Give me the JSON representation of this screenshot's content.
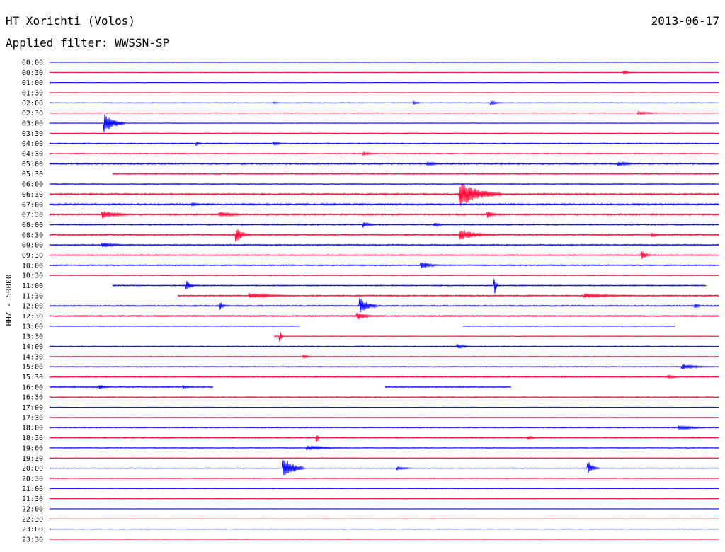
{
  "header": {
    "station": "HT Xorichti (Volos)",
    "date": "2013-06-17",
    "filter_text": "Applied filter: WWSSN-SP"
  },
  "chart_data": {
    "type": "line",
    "title": "HT Xorichti (Volos)",
    "ylabel": "HHZ - 50000",
    "colors": [
      "#0000ff",
      "#ff0033"
    ],
    "row_labels": [
      "00:00",
      "00:30",
      "01:00",
      "01:30",
      "02:00",
      "02:30",
      "03:00",
      "03:30",
      "04:00",
      "04:30",
      "05:00",
      "05:30",
      "06:00",
      "06:30",
      "07:00",
      "07:30",
      "08:00",
      "08:30",
      "09:00",
      "09:30",
      "10:00",
      "10:30",
      "11:00",
      "11:30",
      "12:00",
      "12:30",
      "13:00",
      "13:30",
      "14:00",
      "14:30",
      "15:00",
      "15:30",
      "16:00",
      "16:30",
      "17:00",
      "17:30",
      "18:00",
      "18:30",
      "19:00",
      "19:30",
      "20:00",
      "20:30",
      "21:00",
      "21:30",
      "22:00",
      "22:30",
      "23:00",
      "23:30"
    ],
    "noise_level": [
      0.2,
      0.3,
      0.2,
      0.3,
      0.4,
      0.4,
      0.3,
      0.4,
      0.6,
      0.6,
      0.8,
      0.6,
      0.5,
      0.9,
      0.9,
      0.9,
      0.7,
      0.8,
      0.7,
      0.6,
      0.7,
      0.5,
      0.6,
      0.7,
      0.7,
      0.8,
      0.4,
      0.3,
      0.5,
      0.4,
      0.5,
      0.6,
      0.6,
      0.5,
      0.3,
      0.3,
      0.5,
      0.6,
      0.4,
      0.4,
      0.4,
      0.4,
      0.3,
      0.3,
      0.2,
      0.2,
      0.3,
      0.3
    ],
    "events": [
      {
        "row": 1,
        "x": 0.858,
        "amp": 2.5,
        "len": 0.02
      },
      {
        "row": 4,
        "x": 0.66,
        "amp": 3,
        "len": 0.02
      },
      {
        "row": 4,
        "x": 0.545,
        "amp": 2,
        "len": 0.015
      },
      {
        "row": 4,
        "x": 0.335,
        "amp": 1.5,
        "len": 0.015
      },
      {
        "row": 5,
        "x": 0.88,
        "amp": 2,
        "len": 0.06
      },
      {
        "row": 6,
        "x": 0.083,
        "amp": 14,
        "len": 0.03
      },
      {
        "row": 8,
        "x": 0.335,
        "amp": 3,
        "len": 0.02
      },
      {
        "row": 8,
        "x": 0.22,
        "amp": 2.5,
        "len": 0.015
      },
      {
        "row": 9,
        "x": 0.47,
        "amp": 2.5,
        "len": 0.03
      },
      {
        "row": 10,
        "x": 0.565,
        "amp": 3,
        "len": 0.03
      },
      {
        "row": 10,
        "x": 0.85,
        "amp": 3,
        "len": 0.04
      },
      {
        "row": 13,
        "x": 0.614,
        "amp": 18,
        "len": 0.06
      },
      {
        "row": 14,
        "x": 0.214,
        "amp": 3,
        "len": 0.02
      },
      {
        "row": 15,
        "x": 0.08,
        "amp": 6,
        "len": 0.05
      },
      {
        "row": 15,
        "x": 0.255,
        "amp": 4,
        "len": 0.05
      },
      {
        "row": 15,
        "x": 0.655,
        "amp": 5,
        "len": 0.02
      },
      {
        "row": 16,
        "x": 0.47,
        "amp": 4,
        "len": 0.02
      },
      {
        "row": 16,
        "x": 0.575,
        "amp": 3,
        "len": 0.02
      },
      {
        "row": 17,
        "x": 0.28,
        "amp": 10,
        "len": 0.02
      },
      {
        "row": 17,
        "x": 0.614,
        "amp": 8,
        "len": 0.05
      },
      {
        "row": 17,
        "x": 0.9,
        "amp": 3,
        "len": 0.02
      },
      {
        "row": 18,
        "x": 0.08,
        "amp": 4,
        "len": 0.04
      },
      {
        "row": 19,
        "x": 0.885,
        "amp": 6,
        "len": 0.015
      },
      {
        "row": 20,
        "x": 0.555,
        "amp": 6,
        "len": 0.03
      },
      {
        "row": 22,
        "x": 0.205,
        "amp": 7,
        "len": 0.015
      },
      {
        "row": 22,
        "x": 0.665,
        "amp": 12,
        "len": 0.004
      },
      {
        "row": 23,
        "x": 0.3,
        "amp": 4,
        "len": 0.07
      },
      {
        "row": 23,
        "x": 0.8,
        "amp": 3,
        "len": 0.1
      },
      {
        "row": 24,
        "x": 0.465,
        "amp": 12,
        "len": 0.025
      },
      {
        "row": 24,
        "x": 0.255,
        "amp": 6,
        "len": 0.01
      },
      {
        "row": 24,
        "x": 0.965,
        "amp": 4,
        "len": 0.01
      },
      {
        "row": 25,
        "x": 0.46,
        "amp": 6,
        "len": 0.03
      },
      {
        "row": 27,
        "x": 0.345,
        "amp": 9,
        "len": 0.004
      },
      {
        "row": 28,
        "x": 0.61,
        "amp": 4,
        "len": 0.02
      },
      {
        "row": 29,
        "x": 0.38,
        "amp": 2.5,
        "len": 0.015
      },
      {
        "row": 30,
        "x": 0.945,
        "amp": 4,
        "len": 0.05
      },
      {
        "row": 31,
        "x": 0.925,
        "amp": 3,
        "len": 0.02
      },
      {
        "row": 32,
        "x": 0.075,
        "amp": 3,
        "len": 0.02
      },
      {
        "row": 32,
        "x": 0.2,
        "amp": 2.5,
        "len": 0.02
      },
      {
        "row": 36,
        "x": 0.94,
        "amp": 3,
        "len": 0.06
      },
      {
        "row": 37,
        "x": 0.4,
        "amp": 6,
        "len": 0.004
      },
      {
        "row": 37,
        "x": 0.715,
        "amp": 3,
        "len": 0.02
      },
      {
        "row": 38,
        "x": 0.385,
        "amp": 4,
        "len": 0.05
      },
      {
        "row": 40,
        "x": 0.35,
        "amp": 16,
        "len": 0.03
      },
      {
        "row": 40,
        "x": 0.805,
        "amp": 9,
        "len": 0.015
      },
      {
        "row": 40,
        "x": 0.52,
        "amp": 2.5,
        "len": 0.03
      }
    ],
    "gaps": [
      {
        "row": 11,
        "from": 0.0,
        "to": 0.094
      },
      {
        "row": 22,
        "from": 0.0,
        "to": 0.094
      },
      {
        "row": 22,
        "from": 0.98,
        "to": 1.0
      },
      {
        "row": 23,
        "from": 0.0,
        "to": 0.191
      },
      {
        "row": 26,
        "from": 0.375,
        "to": 0.617
      },
      {
        "row": 26,
        "from": 0.935,
        "to": 1.0
      },
      {
        "row": 27,
        "from": 0.0,
        "to": 0.335
      },
      {
        "row": 32,
        "from": 0.245,
        "to": 0.5
      },
      {
        "row": 32,
        "from": 0.69,
        "to": 1.0
      }
    ]
  }
}
